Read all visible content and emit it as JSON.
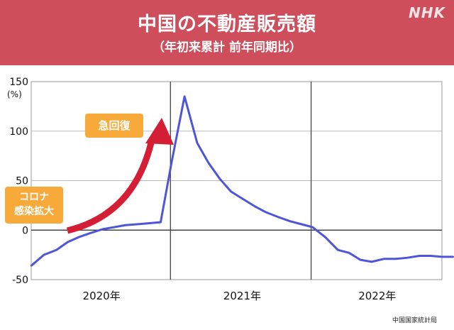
{
  "header": {
    "title": "中国の不動産販売額",
    "subtitle": "（年初来累計 前年同期比）",
    "logo": "NHK"
  },
  "annotations": {
    "recovery": "急回復",
    "corona_line1": "コロナ",
    "corona_line2": "感染拡大"
  },
  "source": "中国国家統計局",
  "colors": {
    "banner": "#cf4e5c",
    "line": "#4f55d9",
    "arrow": "#d41e35",
    "tag": "#f7a93a"
  },
  "chart_data": {
    "type": "line",
    "title": "中国の不動産販売額",
    "subtitle": "（年初来累計 前年同期比）",
    "ylabel": "(%)",
    "ylim": [
      -50,
      150
    ],
    "yticks": [
      -50,
      0,
      50,
      100,
      150
    ],
    "x_groups": [
      "2020年",
      "2021年",
      "2022年"
    ],
    "x_period": "2020-01 to 2022-10 (monthly, two-month Jan–Feb combined)",
    "series": [
      {
        "name": "不動産販売額 前年同期比",
        "x": [
          2020.0,
          2020.09,
          2020.18,
          2020.26,
          2020.34,
          2020.42,
          2020.51,
          2020.59,
          2020.67,
          2020.76,
          2020.84,
          2020.92,
          2021.0,
          2021.09,
          2021.18,
          2021.26,
          2021.34,
          2021.42,
          2021.51,
          2021.59,
          2021.67,
          2021.76,
          2021.84,
          2021.92,
          2022.0,
          2022.09,
          2022.18,
          2022.26,
          2022.34,
          2022.42,
          2022.51,
          2022.59,
          2022.67,
          2022.76,
          2022.84,
          2022.92,
          2023.0
        ],
        "values": [
          -36,
          -25,
          -20,
          -12,
          -7,
          -3,
          1,
          3,
          5,
          6,
          7,
          8,
          70,
          135,
          88,
          68,
          52,
          39,
          31,
          24,
          18,
          13,
          9,
          6,
          3,
          -7,
          -20,
          -23,
          -30,
          -32,
          -29,
          -29,
          -28,
          -26,
          -26,
          -27,
          -27
        ]
      }
    ],
    "annotations": [
      {
        "text": "急回復",
        "note": "red upward arrow from early 2020 to late 2020"
      },
      {
        "text": "コロナ 感染拡大",
        "note": "early 2020"
      }
    ]
  }
}
